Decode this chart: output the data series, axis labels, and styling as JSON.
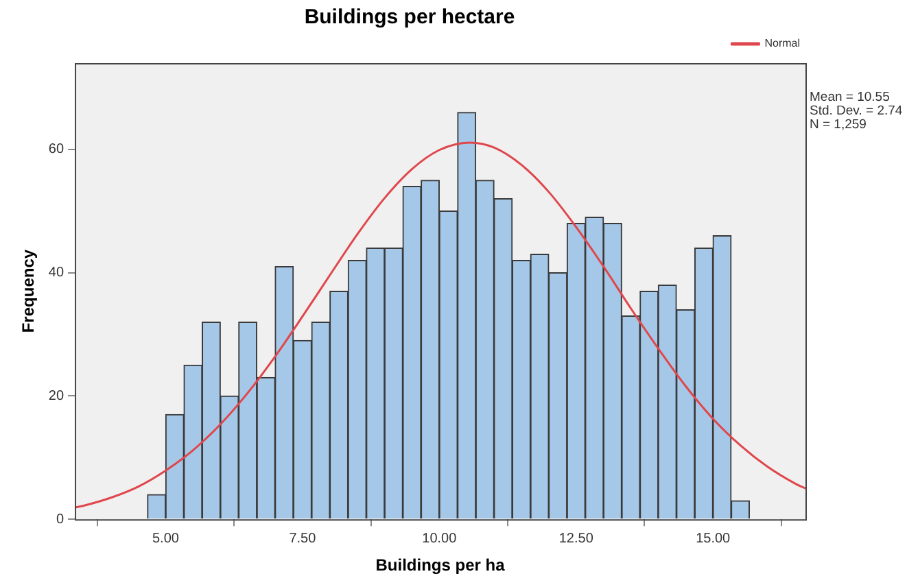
{
  "chart_data": {
    "type": "histogram",
    "title": "Buildings per hectare",
    "xlabel": "Buildings per ha",
    "ylabel": "Frequency",
    "bins": [
      4.667,
      5,
      5.333,
      5.667,
      6,
      6.333,
      6.667,
      7,
      7.333,
      7.667,
      8,
      8.333,
      8.667,
      9,
      9.333,
      9.667,
      10,
      10.333,
      10.667,
      11,
      11.333,
      11.667,
      12,
      12.333,
      12.667,
      13,
      13.333,
      13.667,
      14,
      14.333,
      14.667,
      15,
      15.333,
      15.667
    ],
    "series": [
      {
        "color": "#a6c8e8",
        "values": [
          4,
          17,
          25,
          32,
          20,
          32,
          23,
          41,
          29,
          32,
          37,
          42,
          44,
          44,
          54,
          55,
          50,
          66,
          55,
          52,
          42,
          43,
          40,
          48,
          49,
          48,
          33,
          37,
          38,
          34,
          44,
          46,
          3
        ]
      },
      {
        "type": "line",
        "name": "Normal",
        "color": "#e0474c",
        "x": [
          3.34,
          3.5,
          4,
          4.5,
          5,
          5.5,
          6,
          6.5,
          7,
          7.5,
          8,
          8.5,
          9,
          9.5,
          10,
          10.55,
          11,
          11.5,
          12,
          12.5,
          13,
          13.5,
          14,
          14.5,
          15,
          15.5,
          16,
          16.5,
          16.69
        ],
        "values": [
          1.9,
          2.2,
          3.5,
          5.3,
          7.9,
          11.2,
          15.4,
          20.5,
          26.4,
          32.9,
          39.6,
          46.2,
          52.1,
          56.8,
          59.9,
          61.1,
          60.3,
          57.5,
          53.1,
          47.4,
          41,
          34.2,
          27.7,
          21.6,
          16.3,
          12,
          8.5,
          5.8,
          5
        ]
      }
    ],
    "xlim": [
      3.34,
      16.69
    ],
    "xticks": [
      {
        "value": 5,
        "label": "5.00"
      },
      {
        "value": 7.5,
        "label": "7.50"
      },
      {
        "value": 10,
        "label": "10.00"
      },
      {
        "value": 12.5,
        "label": "12.50"
      },
      {
        "value": 15,
        "label": "15.00"
      }
    ],
    "ylim": [
      0,
      74
    ],
    "yticks": [
      0,
      20,
      40,
      60
    ],
    "annotations": [
      "Mean = 10.55",
      "Std. Dev. = 2.74",
      "N = 1,259"
    ],
    "grid": false,
    "legend": "top right",
    "marker": "none",
    "line_style": "solid"
  }
}
